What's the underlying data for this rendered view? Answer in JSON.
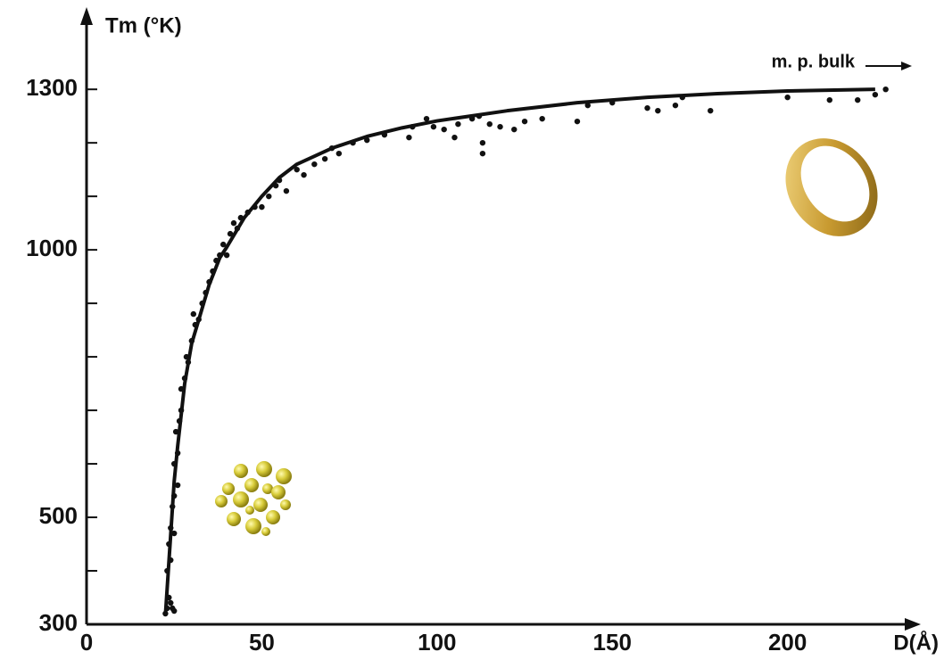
{
  "chart_data": {
    "type": "scatter",
    "x_label": "D(Å)",
    "y_label": "Tm (°K)",
    "annotation": "m. p. bulk",
    "xlim": [
      0,
      237
    ],
    "ylim": [
      300,
      1442
    ],
    "xticks": [
      0,
      50,
      100,
      150,
      200
    ],
    "yticks": [
      300,
      500,
      1000,
      1300
    ],
    "yminorticks": [
      400,
      600,
      700,
      800,
      900,
      1100,
      1200
    ],
    "color": "#111111",
    "series": [
      {
        "type": "scatter",
        "x": [
          22.5,
          23,
          23.5,
          24,
          24.5,
          25,
          23,
          24,
          23.5,
          24,
          25,
          24.5,
          25,
          26,
          25,
          26,
          25.5,
          26.5,
          27,
          27,
          28,
          28.5,
          29,
          30,
          31,
          30.5,
          32,
          33,
          34,
          35,
          36,
          37,
          38,
          39,
          40,
          41,
          42,
          43,
          44,
          46,
          48,
          50,
          52,
          54,
          55,
          57,
          60,
          62,
          65,
          68,
          70,
          72,
          76,
          80,
          85,
          92,
          93,
          97,
          99,
          102,
          105,
          106,
          110,
          112,
          113,
          113,
          115,
          118,
          122,
          125,
          130,
          140,
          143,
          150,
          160,
          163,
          168,
          170,
          178,
          200,
          212,
          220,
          225,
          228
        ],
        "values": [
          320,
          330,
          350,
          340,
          330,
          325,
          400,
          420,
          450,
          480,
          470,
          520,
          540,
          560,
          600,
          620,
          660,
          680,
          700,
          740,
          760,
          800,
          790,
          830,
          860,
          880,
          870,
          900,
          920,
          940,
          960,
          980,
          990,
          1010,
          990,
          1030,
          1050,
          1040,
          1060,
          1070,
          1080,
          1080,
          1100,
          1120,
          1130,
          1110,
          1150,
          1140,
          1160,
          1170,
          1190,
          1180,
          1200,
          1205,
          1215,
          1210,
          1230,
          1245,
          1230,
          1225,
          1210,
          1235,
          1245,
          1250,
          1200,
          1180,
          1235,
          1230,
          1225,
          1240,
          1245,
          1240,
          1270,
          1275,
          1265,
          1260,
          1270,
          1285,
          1260,
          1285,
          1280,
          1280,
          1290,
          1300
        ]
      },
      {
        "type": "line",
        "x": [
          22.5,
          23,
          24,
          25,
          26,
          28,
          30,
          35,
          38,
          40,
          45,
          50,
          55,
          60,
          70,
          80,
          90,
          100,
          120,
          140,
          160,
          180,
          200,
          225
        ],
        "values": [
          317,
          367,
          467,
          567,
          633,
          750,
          825,
          935,
          985,
          1005,
          1060,
          1100,
          1135,
          1160,
          1190,
          1212,
          1228,
          1241,
          1260,
          1275,
          1285,
          1292,
          1297,
          1300
        ]
      }
    ]
  }
}
